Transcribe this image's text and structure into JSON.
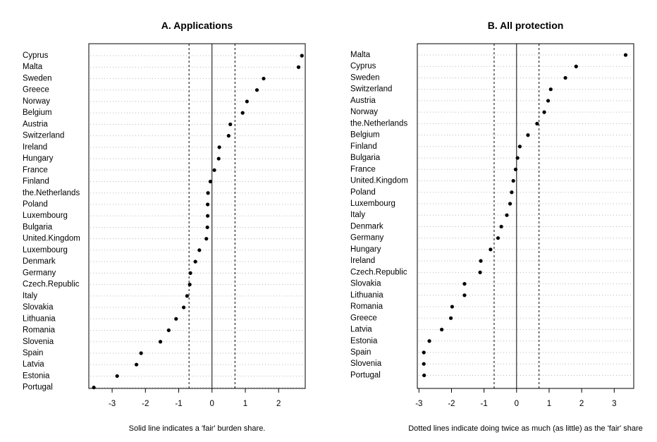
{
  "colors": {
    "points": "#000000",
    "grid": "#b8b8b8",
    "frame": "#000000",
    "background": "#ffffff"
  },
  "chart_data": [
    {
      "type": "scatter",
      "subtype": "dot-plot",
      "title": "A. Applications",
      "caption": "Solid line indicates a 'fair' burden share.",
      "xlim": [
        -3.7,
        2.8
      ],
      "xticks": [
        -3,
        -2,
        -1,
        0,
        1,
        2
      ],
      "xtick_labels": [
        "-3",
        "-2",
        "-1",
        "0",
        "1",
        "2"
      ],
      "reference_lines": {
        "solid": [
          0
        ],
        "dashed": [
          -0.69,
          0.69
        ]
      },
      "grid": "dotted horizontal",
      "categories": [
        "Cyprus",
        "Malta",
        "Sweden",
        "Greece",
        "Norway",
        "Belgium",
        "Austria",
        "Switzerland",
        "Ireland",
        "Hungary",
        "France",
        "Finland",
        "the.Netherlands",
        "Poland",
        "Luxembourg",
        "Bulgaria",
        "United.Kingdom",
        "Luxembourg",
        "Denmark",
        "Germany",
        "Czech.Republic",
        "Italy",
        "Slovakia",
        "Lithuania",
        "Romania",
        "Slovenia",
        "Spain",
        "Latvia",
        "Estonia",
        "Portugal"
      ],
      "values": [
        2.7,
        2.6,
        1.55,
        1.35,
        1.05,
        0.92,
        0.55,
        0.5,
        0.22,
        0.2,
        0.07,
        -0.05,
        -0.12,
        -0.13,
        -0.13,
        -0.14,
        -0.17,
        -0.38,
        -0.5,
        -0.65,
        -0.67,
        -0.75,
        -0.85,
        -1.08,
        -1.3,
        -1.55,
        -2.13,
        -2.27,
        -2.85,
        -3.55
      ]
    },
    {
      "type": "scatter",
      "subtype": "dot-plot",
      "title": "B. All protection",
      "caption": "Dotted lines indicate doing twice as much (as little) as the 'fair' share",
      "xlim": [
        -3.05,
        3.6
      ],
      "xticks": [
        -3,
        -2,
        -1,
        0,
        1,
        2,
        3
      ],
      "xtick_labels": [
        "-3",
        "-2",
        "-1",
        "0",
        "1",
        "2",
        "3"
      ],
      "reference_lines": {
        "solid": [
          0
        ],
        "dashed": [
          -0.69,
          0.69
        ]
      },
      "grid": "dotted horizontal",
      "categories": [
        "Malta",
        "Cyprus",
        "Sweden",
        "Switzerland",
        "Austria",
        "Norway",
        "the.Netherlands",
        "Belgium",
        "Finland",
        "Bulgaria",
        "France",
        "United.Kingdom",
        "Poland",
        "Luxembourg",
        "Italy",
        "Denmark",
        "Germany",
        "Hungary",
        "Ireland",
        "Czech.Republic",
        "Slovakia",
        "Lithuania",
        "Romania",
        "Greece",
        "Latvia",
        "Estonia",
        "Spain",
        "Slovenia",
        "Portugal"
      ],
      "values": [
        3.35,
        1.83,
        1.5,
        1.05,
        0.97,
        0.85,
        0.63,
        0.35,
        0.1,
        0.03,
        -0.03,
        -0.1,
        -0.15,
        -0.2,
        -0.3,
        -0.47,
        -0.57,
        -0.8,
        -1.1,
        -1.12,
        -1.6,
        -1.6,
        -1.98,
        -2.02,
        -2.3,
        -2.68,
        -2.85,
        -2.85,
        -2.84
      ]
    }
  ]
}
